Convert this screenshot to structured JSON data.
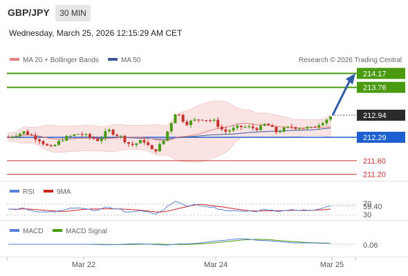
{
  "header": {
    "pair": "GBP/JPY",
    "timeframe": "30 MIN",
    "datetime": "Wednesday, March 25, 2026 12:15:29 AM CET"
  },
  "chart_data": [
    {
      "type": "candlestick",
      "legend": [
        "MA 20 + Bollinger Bands",
        "MA 50"
      ],
      "credit": "Research © 2026 Trading Central",
      "ylim": [
        211.05,
        214.3
      ],
      "levels": [
        {
          "value": 214.17,
          "label": "214.17",
          "color": "#4a9a10"
        },
        {
          "value": 213.76,
          "label": "213.76",
          "color": "#4a9a10"
        },
        {
          "value": 212.29,
          "label": "212.29",
          "color": "#1e5fcf"
        },
        {
          "value": 211.6,
          "label": "211.60",
          "color": "#c8322d"
        },
        {
          "value": 211.2,
          "label": "211.20",
          "color": "#c8322d"
        }
      ],
      "last_price": {
        "value": 212.94,
        "label": "212.94"
      },
      "forecast_target": 214.17,
      "x_ticks": [
        "Mar 22",
        "Mar 24",
        "Mar 25"
      ],
      "colors": {
        "up": "#4a9a10",
        "down": "#c8322d",
        "band": "#f8dada",
        "ma20": "#e88080",
        "ma50": "#3a5a9a"
      }
    },
    {
      "type": "line",
      "legend": [
        "RSI",
        "9MA"
      ],
      "y_ticks": [
        "70",
        "30"
      ],
      "last_label": "59.40",
      "colors": {
        "rsi": "#5a7ed8",
        "ma9": "#cc2222"
      }
    },
    {
      "type": "line",
      "legend": [
        "MACD",
        "MACD Signal"
      ],
      "last_label": "0.06",
      "colors": {
        "macd": "#5a7ed8",
        "signal": "#4a9a10"
      }
    }
  ]
}
